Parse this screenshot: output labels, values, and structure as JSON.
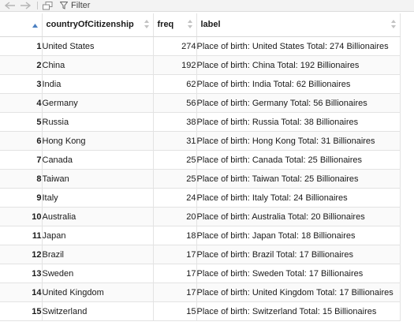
{
  "toolbar": {
    "filter_label": "Filter"
  },
  "table": {
    "columns": [
      "countryOfCitizenship",
      "freq",
      "label"
    ],
    "sorted_column_icon": "sort-ascending-icon",
    "rows": [
      {
        "index": "1",
        "country": "United States",
        "freq": "274",
        "label": "Place of birth: United States Total: 274 Billionaires"
      },
      {
        "index": "2",
        "country": "China",
        "freq": "192",
        "label": "Place of birth: China Total: 192 Billionaires"
      },
      {
        "index": "3",
        "country": "India",
        "freq": "62",
        "label": "Place of birth: India Total: 62 Billionaires"
      },
      {
        "index": "4",
        "country": "Germany",
        "freq": "56",
        "label": "Place of birth: Germany Total: 56 Billionaires"
      },
      {
        "index": "5",
        "country": "Russia",
        "freq": "38",
        "label": "Place of birth: Russia Total: 38 Billionaires"
      },
      {
        "index": "6",
        "country": "Hong Kong",
        "freq": "31",
        "label": "Place of birth: Hong Kong Total: 31 Billionaires"
      },
      {
        "index": "7",
        "country": "Canada",
        "freq": "25",
        "label": "Place of birth: Canada Total: 25 Billionaires"
      },
      {
        "index": "8",
        "country": "Taiwan",
        "freq": "25",
        "label": "Place of birth: Taiwan Total: 25 Billionaires"
      },
      {
        "index": "9",
        "country": "Italy",
        "freq": "24",
        "label": "Place of birth: Italy Total: 24 Billionaires"
      },
      {
        "index": "10",
        "country": "Australia",
        "freq": "20",
        "label": "Place of birth: Australia Total: 20 Billionaires"
      },
      {
        "index": "11",
        "country": "Japan",
        "freq": "18",
        "label": "Place of birth: Japan Total: 18 Billionaires"
      },
      {
        "index": "12",
        "country": "Brazil",
        "freq": "17",
        "label": "Place of birth: Brazil Total: 17 Billionaires"
      },
      {
        "index": "13",
        "country": "Sweden",
        "freq": "17",
        "label": "Place of birth: Sweden Total: 17 Billionaires"
      },
      {
        "index": "14",
        "country": "United Kingdom",
        "freq": "17",
        "label": "Place of birth: United Kingdom Total: 17 Billionaires"
      },
      {
        "index": "15",
        "country": "Switzerland",
        "freq": "15",
        "label": "Place of birth: Switzerland Total: 15 Billionaires"
      }
    ]
  }
}
